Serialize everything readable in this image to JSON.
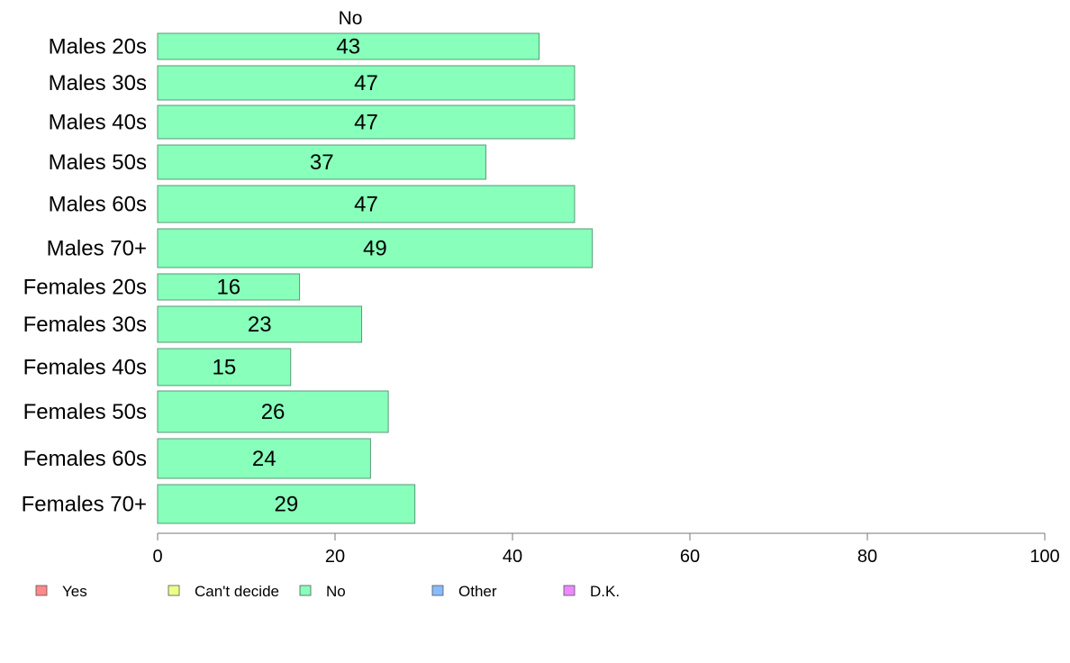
{
  "chart_data": {
    "type": "bar",
    "orientation": "horizontal",
    "series_title": "No",
    "categories": [
      "Males 20s",
      "Males 30s",
      "Males 40s",
      "Males 50s",
      "Males 60s",
      "Males 70+",
      "Females 20s",
      "Females 30s",
      "Females 40s",
      "Females 50s",
      "Females 60s",
      "Females 70+"
    ],
    "series": [
      {
        "name": "No",
        "values": [
          43,
          47,
          47,
          37,
          47,
          49,
          16,
          23,
          15,
          26,
          24,
          29
        ],
        "color": "#88ffbb"
      }
    ],
    "xlim": [
      0,
      100
    ],
    "x_ticks": [
      0,
      20,
      40,
      60,
      80,
      100
    ],
    "xlabel": "",
    "ylabel": "",
    "legend": {
      "placement": "bottom",
      "items": [
        {
          "label": "Yes",
          "color": "#ff8888"
        },
        {
          "label": "Can't decide",
          "color": "#eeff88"
        },
        {
          "label": "No",
          "color": "#88ffbb"
        },
        {
          "label": "Other",
          "color": "#88bbff"
        },
        {
          "label": "D.K.",
          "color": "#ee88ff"
        }
      ]
    }
  }
}
